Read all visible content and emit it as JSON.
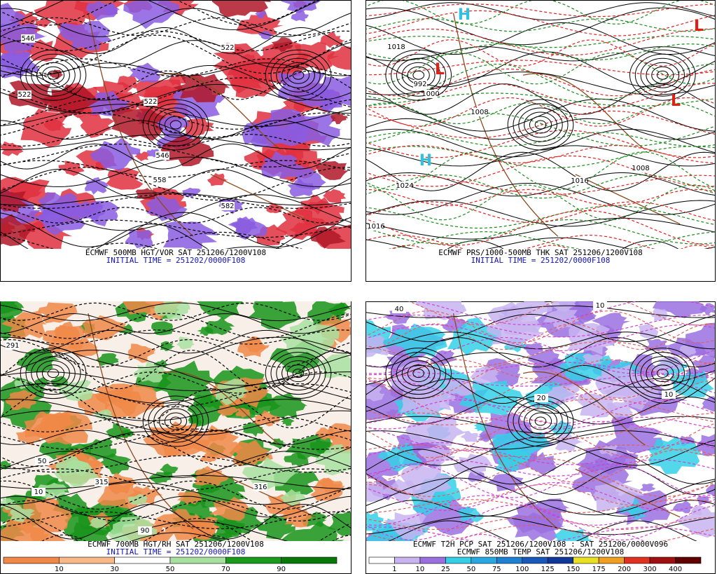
{
  "panels": [
    {
      "caption": [
        "ECMWF 500MB HGT/VOR SAT 251206/1200V108",
        "INITIAL TIME = 251202/0000F108"
      ],
      "labels": [
        "546",
        "522",
        "522",
        "522",
        "546",
        "558",
        "582"
      ]
    },
    {
      "caption": [
        "ECMWF PRS/1000-500MB THK SAT 251206/1200V108",
        "INITIAL TIME = 251202/0000F108"
      ],
      "labels": [
        "H",
        "H",
        "L",
        "L",
        "L",
        "1018",
        "992",
        "1000",
        "1008",
        "1024",
        "1016",
        "1008",
        "1016"
      ]
    },
    {
      "caption": [
        "ECMWF 700MB HGT/RH SAT 251206/1200V108",
        "INITIAL TIME = 251202/0000F108"
      ],
      "labels": [
        "291",
        "50",
        "315",
        "10",
        "316",
        "90"
      ],
      "colorbar": {
        "labels": [
          "10",
          "30",
          "50",
          "70",
          "90"
        ],
        "colors": [
          "#f08848",
          "#f8b888",
          "#ffffff",
          "#a8e0a0",
          "#1a9a1a",
          "#087808"
        ]
      }
    },
    {
      "caption": [
        "ECMWF T2H PCP SAT 251206/1200V108 : SAT 251206/0000V096",
        "ECMWF 850MB TEMP SAT 251206/1200V108"
      ],
      "labels": [
        "40",
        "10",
        "10",
        "20"
      ],
      "colorbar": {
        "labels": [
          "1",
          "10",
          "25",
          "50",
          "75",
          "100",
          "125",
          "150",
          "175",
          "200",
          "300",
          "400"
        ],
        "colors": [
          "#ffffff",
          "#c8b4f0",
          "#9a70e0",
          "#35d0e8",
          "#28a8e0",
          "#1e80d0",
          "#1858b8",
          "#103898",
          "#e8e020",
          "#f0a020",
          "#e03020",
          "#a01010",
          "#600000"
        ]
      }
    }
  ]
}
